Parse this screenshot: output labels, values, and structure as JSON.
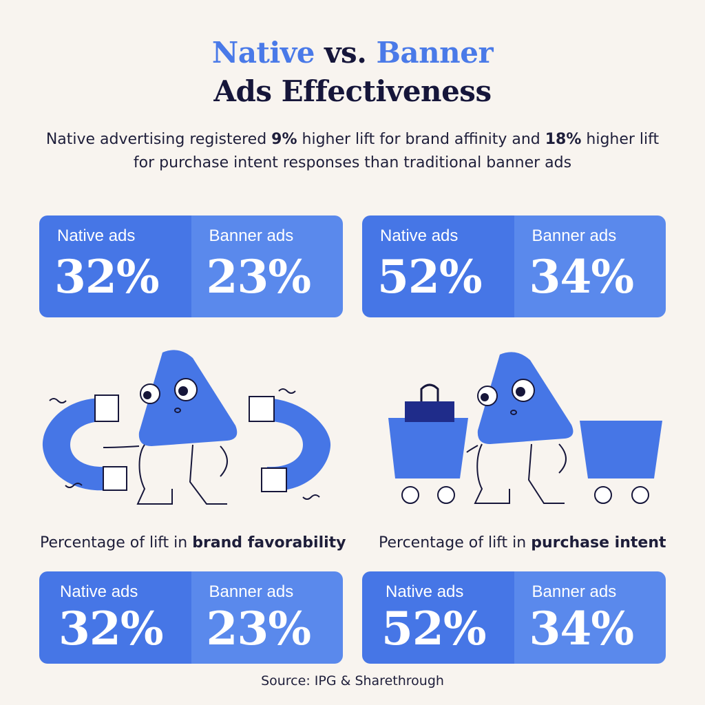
{
  "header": {
    "title_word1": "Native",
    "title_vs": "vs.",
    "title_word2": "Banner",
    "title_line2": "Ads Effectiveness",
    "subtitle_part1": "Native advertising registered ",
    "subtitle_bold1": "9%",
    "subtitle_part2": " higher lift for brand affinity and ",
    "subtitle_bold2": "18%",
    "subtitle_part3": " higher lift for purchase intent responses than traditional banner ads"
  },
  "cards": {
    "top_left": {
      "native_label": "Native ads",
      "native_value": "32%",
      "banner_label": "Banner ads",
      "banner_value": "23%"
    },
    "top_right": {
      "native_label": "Native ads",
      "native_value": "52%",
      "banner_label": "Banner ads",
      "banner_value": "34%"
    },
    "bottom_left": {
      "native_label": "Native ads",
      "native_value": "32%",
      "banner_label": "Banner ads",
      "banner_value": "23%"
    },
    "bottom_right": {
      "native_label": "Native ads",
      "native_value": "52%",
      "banner_label": "Banner ads",
      "banner_value": "34%"
    }
  },
  "captions": {
    "left_prefix": "Percentage of lift in ",
    "left_bold": "brand favorability",
    "right_prefix": "Percentage of lift in ",
    "right_bold": "purchase intent"
  },
  "source": "Source: IPG & Sharethrough",
  "colors": {
    "primary_blue": "#4676e6",
    "light_blue": "#5a89ec",
    "navy": "#16163a",
    "background": "#f8f4ef"
  },
  "icons": [
    "magnet-icon",
    "shopping-cart-icon",
    "shopping-bag-icon",
    "triangle-character-icon"
  ]
}
